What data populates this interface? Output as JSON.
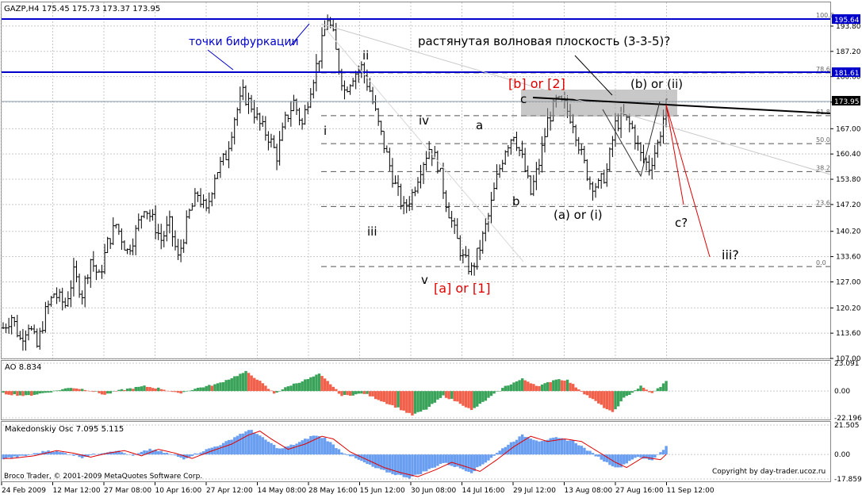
{
  "header": {
    "symbol_info": "GAZP,H4  175.45 175.73 173.37 173.95",
    "ao_label": "AO 8.834",
    "mak_label": "Makedonskiy Osc 7.095 5.115",
    "broker": "Broco Trader, © 2001-2009 MetaQuotes Software Corp.",
    "copyright": "Copyright by day-trader.ucoz.ru"
  },
  "colors": {
    "bars": "#000000",
    "hline": "#0000cc",
    "ao_up": "#3aa35a",
    "ao_down": "#f0604a",
    "mak_hist": "#6a9ef0",
    "mak_line": "#e00000",
    "red_text": "#e00000",
    "zone": "#9a9a9a"
  },
  "chart_data": [
    {
      "type": "candlestick",
      "ylim": [
        107.0,
        200.0
      ],
      "y_ticks": [
        "193.80",
        "187.20",
        "180.60",
        "173.95",
        "167.00",
        "160.40",
        "153.80",
        "147.20",
        "140.20",
        "133.60",
        "127.00",
        "120.20",
        "113.60",
        "107.00"
      ],
      "x_ticks": [
        "24 Feb 2009",
        "12 Mar 12:00",
        "27 Mar 08:00",
        "10 Apr 16:00",
        "27 Apr 12:00",
        "14 May 08:00",
        "28 May 16:00",
        "15 Jun 12:00",
        "30 Jun 08:00",
        "14 Jul 16:00",
        "29 Jul 12:00",
        "13 Aug 08:00",
        "27 Aug 16:00",
        "11 Sep 12:00"
      ],
      "price_path": [
        [
          0,
          115
        ],
        [
          3,
          118
        ],
        [
          6,
          112
        ],
        [
          9,
          116
        ],
        [
          12,
          110
        ],
        [
          15,
          119
        ],
        [
          18,
          124
        ],
        [
          22,
          121
        ],
        [
          25,
          129
        ],
        [
          28,
          124
        ],
        [
          31,
          133
        ],
        [
          34,
          128
        ],
        [
          37,
          137
        ],
        [
          40,
          142
        ],
        [
          44,
          135
        ],
        [
          47,
          140
        ],
        [
          50,
          147
        ],
        [
          53,
          143
        ],
        [
          56,
          138
        ],
        [
          59,
          142
        ],
        [
          62,
          133
        ],
        [
          66,
          145
        ],
        [
          69,
          150
        ],
        [
          72,
          145
        ],
        [
          75,
          155
        ],
        [
          79,
          160
        ],
        [
          82,
          170
        ],
        [
          85,
          176
        ],
        [
          88,
          173
        ],
        [
          91,
          168
        ],
        [
          94,
          165
        ],
        [
          97,
          160
        ],
        [
          100,
          169
        ],
        [
          103,
          174
        ],
        [
          106,
          168
        ],
        [
          109,
          178
        ],
        [
          112,
          186
        ],
        [
          115,
          196
        ],
        [
          117,
          191
        ],
        [
          119,
          183
        ],
        [
          121,
          177
        ],
        [
          124,
          181
        ],
        [
          127,
          183
        ],
        [
          130,
          177
        ],
        [
          133,
          168
        ],
        [
          136,
          160
        ],
        [
          139,
          152
        ],
        [
          142,
          146
        ],
        [
          145,
          150
        ],
        [
          148,
          157
        ],
        [
          151,
          162
        ],
        [
          154,
          158
        ],
        [
          157,
          148
        ],
        [
          160,
          140
        ],
        [
          163,
          133
        ],
        [
          166,
          130
        ],
        [
          169,
          136
        ],
        [
          172,
          144
        ],
        [
          175,
          154
        ],
        [
          178,
          162
        ],
        [
          181,
          166
        ],
        [
          184,
          159
        ],
        [
          187,
          150
        ],
        [
          190,
          158
        ],
        [
          193,
          169
        ],
        [
          196,
          174
        ],
        [
          199,
          173
        ],
        [
          202,
          169
        ],
        [
          205,
          160
        ],
        [
          208,
          153
        ],
        [
          211,
          152
        ],
        [
          214,
          156
        ],
        [
          217,
          168
        ],
        [
          220,
          170
        ],
        [
          223,
          167
        ],
        [
          226,
          160
        ],
        [
          229,
          157
        ],
        [
          232,
          163
        ],
        [
          235,
          173
        ]
      ],
      "hlines": [
        195.64,
        181.61
      ],
      "hline_labels": [
        "195.64",
        "181.61"
      ],
      "current_price_label": "173.95",
      "fib_levels": [
        "100.0",
        "78.6",
        "61.8",
        "50.0",
        "38.2",
        "23.6",
        "0.0"
      ],
      "fib_prices": [
        195.6,
        181.6,
        170.4,
        163.1,
        155.8,
        146.7,
        131.0
      ],
      "labels": {
        "bifurcation": "точки бифуркации",
        "title_note": "растянутая волновая плоскость (3-3-5)?",
        "w_ii": "ii",
        "w_i": "i",
        "w_iii": "iii",
        "w_iv": "iv",
        "w_v": "v",
        "w_a": "a",
        "w_b": "b",
        "w_c": "c",
        "w_b2": "[b] or [2]",
        "w_a1": "[a] or [1]",
        "w_ai": "(a) or (i)",
        "w_bii": "(b) or (ii)",
        "w_cq": "c?",
        "w_iiiq": "iii?"
      }
    },
    {
      "type": "bar",
      "name": "AO",
      "ylim": [
        -22.196,
        23.091
      ],
      "y_ticks": [
        "23.091",
        "0.00",
        "-22.196"
      ],
      "wave": [
        [
          0,
          -2
        ],
        [
          8,
          -4
        ],
        [
          16,
          -1
        ],
        [
          24,
          3
        ],
        [
          30,
          1
        ],
        [
          36,
          -3
        ],
        [
          42,
          1
        ],
        [
          50,
          4
        ],
        [
          56,
          2
        ],
        [
          62,
          -2
        ],
        [
          68,
          2
        ],
        [
          76,
          6
        ],
        [
          82,
          12
        ],
        [
          86,
          16
        ],
        [
          90,
          10
        ],
        [
          96,
          -2
        ],
        [
          102,
          5
        ],
        [
          108,
          10
        ],
        [
          112,
          14
        ],
        [
          116,
          6
        ],
        [
          120,
          -4
        ],
        [
          128,
          -2
        ],
        [
          134,
          -8
        ],
        [
          140,
          -14
        ],
        [
          145,
          -20
        ],
        [
          150,
          -15
        ],
        [
          156,
          -4
        ],
        [
          162,
          -10
        ],
        [
          166,
          -16
        ],
        [
          172,
          -6
        ],
        [
          178,
          4
        ],
        [
          184,
          10
        ],
        [
          190,
          4
        ],
        [
          196,
          10
        ],
        [
          200,
          9
        ],
        [
          206,
          -2
        ],
        [
          212,
          -12
        ],
        [
          216,
          -18
        ],
        [
          220,
          -6
        ],
        [
          226,
          4
        ],
        [
          230,
          -2
        ],
        [
          235,
          8
        ]
      ]
    },
    {
      "type": "bar",
      "name": "Makedonskiy Osc",
      "ylim": [
        -17.859,
        21.505
      ],
      "y_ticks": [
        "21.505",
        "0.00",
        "-17.859"
      ],
      "wave": [
        [
          0,
          -3
        ],
        [
          8,
          -1
        ],
        [
          16,
          3
        ],
        [
          22,
          1
        ],
        [
          28,
          -2
        ],
        [
          34,
          1
        ],
        [
          40,
          3
        ],
        [
          46,
          -1
        ],
        [
          52,
          4
        ],
        [
          58,
          1
        ],
        [
          64,
          -3
        ],
        [
          70,
          2
        ],
        [
          78,
          8
        ],
        [
          84,
          15
        ],
        [
          88,
          18
        ],
        [
          92,
          12
        ],
        [
          98,
          4
        ],
        [
          104,
          8
        ],
        [
          110,
          14
        ],
        [
          114,
          12
        ],
        [
          120,
          2
        ],
        [
          126,
          -4
        ],
        [
          132,
          -10
        ],
        [
          138,
          -14
        ],
        [
          144,
          -17
        ],
        [
          150,
          -12
        ],
        [
          156,
          -6
        ],
        [
          162,
          -10
        ],
        [
          166,
          -13
        ],
        [
          172,
          -4
        ],
        [
          178,
          6
        ],
        [
          184,
          14
        ],
        [
          190,
          10
        ],
        [
          196,
          12
        ],
        [
          202,
          10
        ],
        [
          208,
          2
        ],
        [
          214,
          -6
        ],
        [
          218,
          -10
        ],
        [
          224,
          -2
        ],
        [
          230,
          -4
        ],
        [
          235,
          6
        ]
      ]
    }
  ]
}
